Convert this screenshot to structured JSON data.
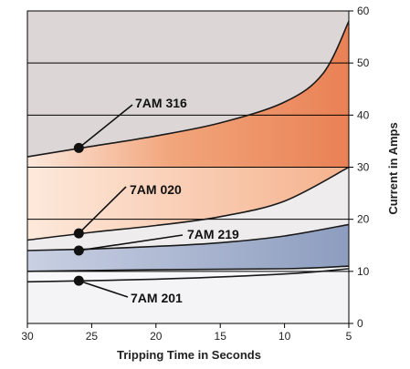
{
  "chart_data": {
    "type": "area",
    "title": "",
    "xlabel": "Tripping Time in Seconds",
    "ylabel": "Current in Amps",
    "xlim": [
      30,
      5
    ],
    "ylim": [
      0,
      60
    ],
    "x_ticks": [
      30,
      25,
      20,
      15,
      10,
      5
    ],
    "y_ticks": [
      0,
      10,
      20,
      30,
      40,
      50,
      60
    ],
    "grid": "horizontal",
    "series": [
      {
        "name": "7AM 201",
        "band_lower": [
          [
            30,
            8
          ],
          [
            20,
            8.5
          ],
          [
            10,
            9.5
          ],
          [
            5,
            10.5
          ]
        ],
        "band_upper": [
          [
            30,
            8
          ],
          [
            20,
            8.5
          ],
          [
            10,
            9.5
          ],
          [
            5,
            10.5
          ]
        ],
        "marker": [
          26,
          8.2
        ]
      },
      {
        "name": "7AM 219",
        "band_lower": [
          [
            30,
            10
          ],
          [
            20,
            10.3
          ],
          [
            10,
            10.5
          ],
          [
            5,
            11
          ]
        ],
        "band_upper": [
          [
            30,
            14
          ],
          [
            25,
            14.3
          ],
          [
            20,
            14.8
          ],
          [
            15,
            15.5
          ],
          [
            10,
            16.8
          ],
          [
            5,
            19
          ]
        ],
        "marker": [
          26,
          14
        ]
      },
      {
        "name": "7AM 020",
        "band_lower": [
          [
            30,
            16
          ],
          [
            25,
            17.5
          ],
          [
            20,
            18.8
          ],
          [
            15,
            20.5
          ],
          [
            10,
            23.5
          ],
          [
            5,
            30
          ]
        ],
        "band_upper": [
          [
            30,
            30
          ],
          [
            5,
            30
          ]
        ],
        "marker": [
          26,
          17.3
        ]
      },
      {
        "name": "7AM 316",
        "band_lower": [
          [
            30,
            32
          ],
          [
            25,
            34
          ],
          [
            20,
            36
          ],
          [
            15,
            38.5
          ],
          [
            10,
            42.5
          ],
          [
            7,
            48
          ],
          [
            5,
            58
          ]
        ],
        "band_upper": [
          [
            30,
            60
          ],
          [
            5,
            60
          ]
        ],
        "marker": [
          26,
          33.7
        ]
      }
    ],
    "annotations": [
      {
        "text": "7AM 316",
        "series": "7AM 316"
      },
      {
        "text": "7AM 020",
        "series": "7AM 020"
      },
      {
        "text": "7AM 219",
        "series": "7AM 219"
      },
      {
        "text": "7AM 201",
        "series": "7AM 201"
      }
    ],
    "colors": {
      "region_316": "#e98155",
      "region_020": "#f5b28d",
      "region_219": "#8d9dbf",
      "region_top": "#ddd6d6",
      "region_low": "#f4f3f6",
      "grid": "#000000"
    }
  }
}
